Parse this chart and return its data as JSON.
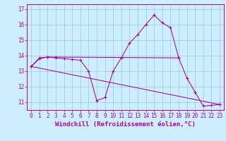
{
  "background_color": "#cceeff",
  "line_color": "#aa00aa",
  "grid_color": "#99cccc",
  "xlabel": "Windchill (Refroidissement éolien,°C)",
  "xlabel_fontsize": 6.5,
  "tick_fontsize": 5.5,
  "ylim": [
    10.5,
    17.3
  ],
  "xlim": [
    -0.5,
    23.5
  ],
  "yticks": [
    11,
    12,
    13,
    14,
    15,
    16,
    17
  ],
  "xticks": [
    0,
    1,
    2,
    3,
    4,
    5,
    6,
    7,
    8,
    9,
    10,
    11,
    12,
    13,
    14,
    15,
    16,
    17,
    18,
    19,
    20,
    21,
    22,
    23
  ],
  "series": [
    {
      "x": [
        0,
        1,
        2,
        3,
        4,
        5,
        6,
        7,
        8,
        9,
        10,
        11,
        12,
        13,
        14,
        15,
        16,
        17,
        18,
        19,
        20,
        21,
        22,
        23
      ],
      "y": [
        13.3,
        13.8,
        13.9,
        13.85,
        13.8,
        13.75,
        13.7,
        13.0,
        11.1,
        11.3,
        13.0,
        13.85,
        14.8,
        15.35,
        16.0,
        16.6,
        16.1,
        15.8,
        13.85,
        12.55,
        11.65,
        10.75,
        10.8,
        10.85
      ]
    },
    {
      "x": [
        0,
        1,
        2,
        3,
        18
      ],
      "y": [
        13.3,
        13.85,
        13.9,
        13.9,
        13.85
      ]
    },
    {
      "x": [
        0,
        23
      ],
      "y": [
        13.3,
        10.85
      ]
    }
  ]
}
